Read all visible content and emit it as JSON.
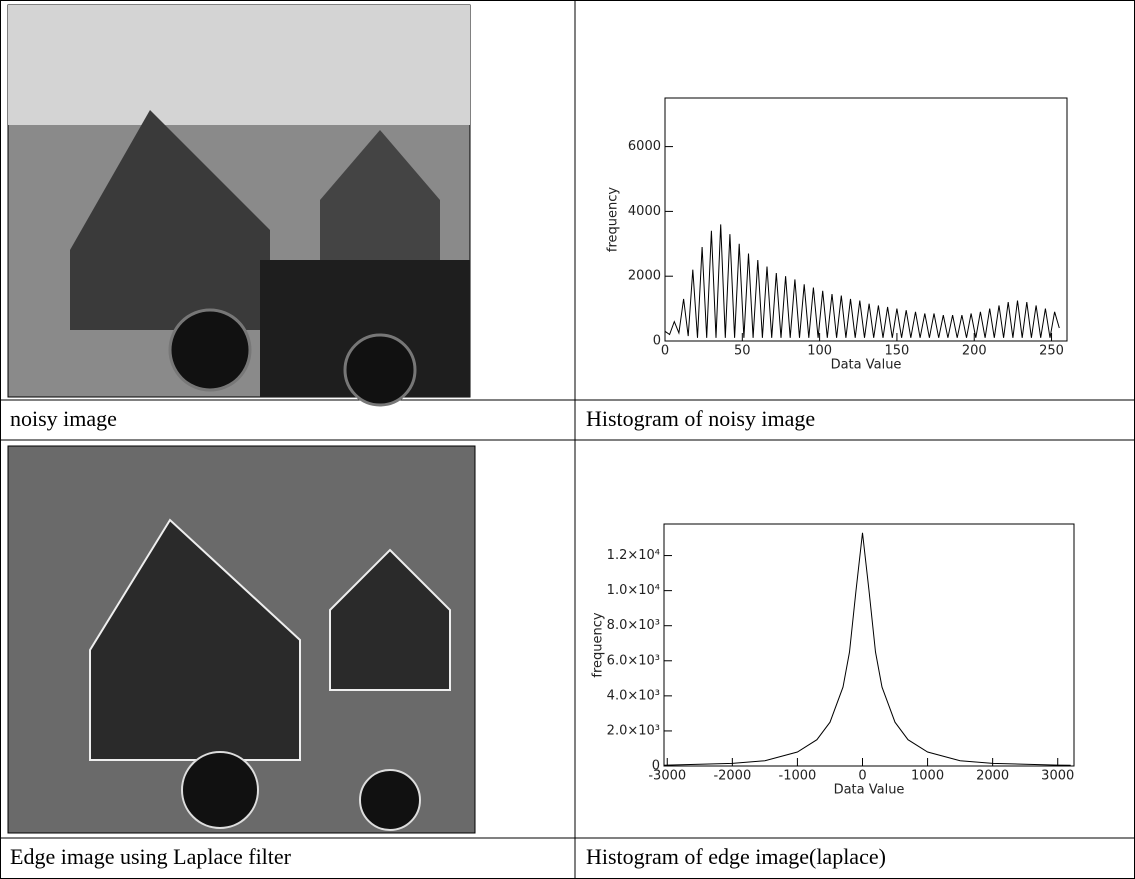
{
  "table": {
    "captions": [
      [
        "noisy image",
        "Histogram of noisy image"
      ],
      [
        "Edge image using Laplace filter",
        "Histogram of edge image(laplace)"
      ]
    ]
  },
  "chart_data": [
    {
      "type": "line",
      "xlabel": "Data Value",
      "ylabel": "frequency",
      "color": "#000000",
      "xlim": [
        0,
        260
      ],
      "ylim": [
        0,
        7500
      ],
      "xticks": [
        0,
        50,
        100,
        150,
        200,
        250
      ],
      "yticks": [
        0,
        2000,
        4000,
        6000
      ],
      "x": [
        0,
        3,
        6,
        9,
        12,
        15,
        18,
        21,
        24,
        27,
        30,
        33,
        36,
        39,
        42,
        45,
        48,
        51,
        54,
        57,
        60,
        63,
        66,
        69,
        72,
        75,
        78,
        81,
        84,
        87,
        90,
        93,
        96,
        99,
        102,
        105,
        108,
        111,
        114,
        117,
        120,
        123,
        126,
        129,
        132,
        135,
        138,
        141,
        144,
        147,
        150,
        153,
        156,
        159,
        162,
        165,
        168,
        171,
        174,
        177,
        180,
        183,
        186,
        189,
        192,
        195,
        198,
        201,
        204,
        207,
        210,
        213,
        216,
        219,
        222,
        225,
        228,
        231,
        234,
        237,
        240,
        243,
        246,
        249,
        252,
        255
      ],
      "values": [
        300,
        200,
        600,
        250,
        1300,
        150,
        2200,
        100,
        2900,
        100,
        3400,
        100,
        3600,
        100,
        3300,
        100,
        3000,
        100,
        2700,
        100,
        2500,
        100,
        2300,
        100,
        2100,
        100,
        2000,
        100,
        1900,
        100,
        1750,
        100,
        1650,
        100,
        1550,
        100,
        1450,
        100,
        1400,
        100,
        1300,
        100,
        1250,
        100,
        1150,
        100,
        1100,
        100,
        1050,
        100,
        1000,
        100,
        950,
        100,
        900,
        100,
        850,
        100,
        850,
        100,
        800,
        100,
        800,
        100,
        800,
        100,
        850,
        100,
        900,
        100,
        1000,
        100,
        1100,
        100,
        1200,
        100,
        1250,
        100,
        1200,
        100,
        1100,
        100,
        1000,
        100,
        900,
        400
      ]
    },
    {
      "type": "line",
      "xlabel": "Data Value",
      "ylabel": "frequency",
      "color": "#000000",
      "xlim": [
        -3050,
        3250
      ],
      "ylim": [
        0,
        13800
      ],
      "xticks": [
        -3000,
        -2000,
        -1000,
        0,
        1000,
        2000,
        3000
      ],
      "yticks": [
        0,
        {
          "value": 2000,
          "label": "2.0×10³"
        },
        {
          "value": 4000,
          "label": "4.0×10³"
        },
        {
          "value": 6000,
          "label": "6.0×10³"
        },
        {
          "value": 8000,
          "label": "8.0×10³"
        },
        {
          "value": 10000,
          "label": "1.0×10⁴"
        },
        {
          "value": 12000,
          "label": "1.2×10⁴"
        }
      ],
      "x": [
        -3050,
        -3000,
        -2000,
        -1500,
        -1000,
        -700,
        -500,
        -300,
        -200,
        -100,
        0,
        100,
        200,
        300,
        500,
        700,
        1000,
        1500,
        2000,
        3000,
        3200
      ],
      "values": [
        40,
        50,
        150,
        300,
        800,
        1500,
        2500,
        4500,
        6500,
        10000,
        13300,
        10000,
        6500,
        4500,
        2500,
        1500,
        800,
        300,
        150,
        50,
        40
      ]
    }
  ]
}
